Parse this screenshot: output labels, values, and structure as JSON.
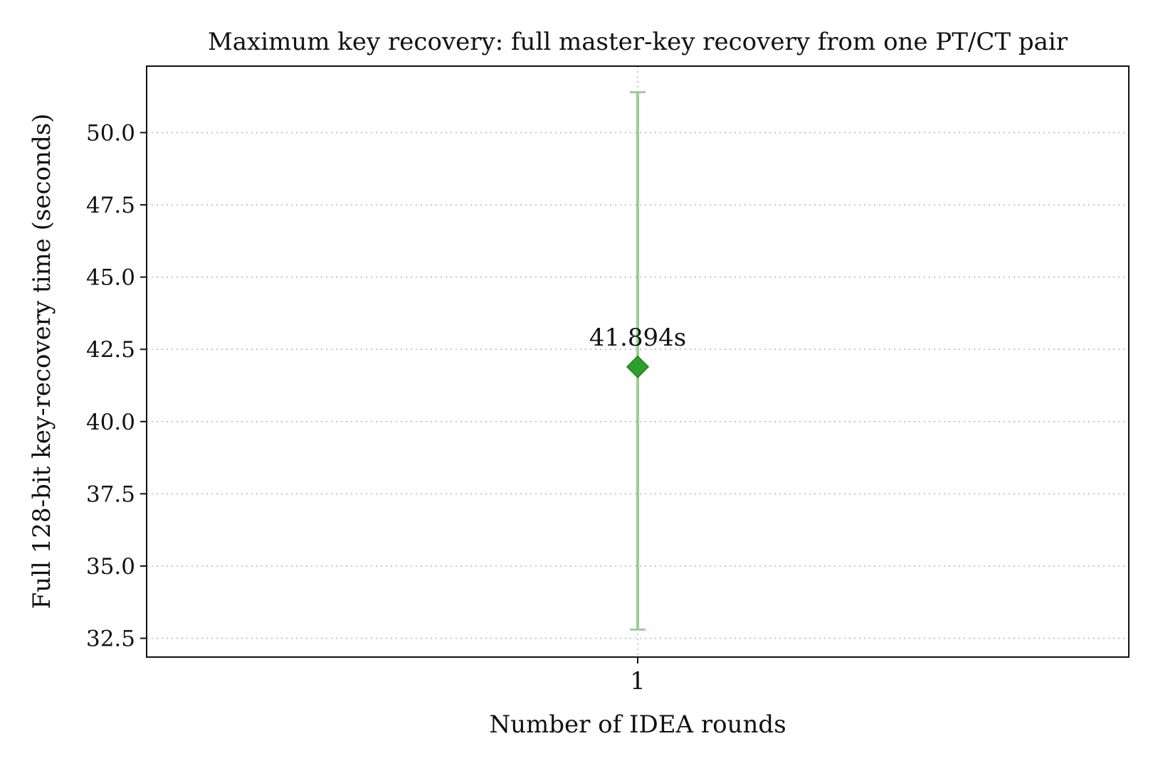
{
  "chart_data": {
    "type": "scatter",
    "title": "Maximum key recovery: full master-key recovery from one PT/CT pair",
    "xlabel": "Number of IDEA rounds",
    "ylabel": "Full 128-bit key-recovery time (seconds)",
    "x_tick_labels": [
      "1"
    ],
    "x_values": [
      1
    ],
    "xlim": [
      0.5,
      1.5
    ],
    "y_ticks": [
      32.5,
      35.0,
      37.5,
      40.0,
      42.5,
      45.0,
      47.5,
      50.0
    ],
    "y_tick_labels": [
      "32.5",
      "35.0",
      "37.5",
      "40.0",
      "42.5",
      "45.0",
      "47.5",
      "50.0"
    ],
    "ylim": [
      31.85,
      52.3
    ],
    "grid": "dotted, horizontal and vertical",
    "series": [
      {
        "values": [
          41.894
        ],
        "error_low": [
          32.8
        ],
        "error_high": [
          51.4
        ],
        "marker": "diamond",
        "color": "#2ca02c",
        "errorbar_color": "#98cf93",
        "data_labels": [
          "41.894s"
        ]
      }
    ]
  }
}
